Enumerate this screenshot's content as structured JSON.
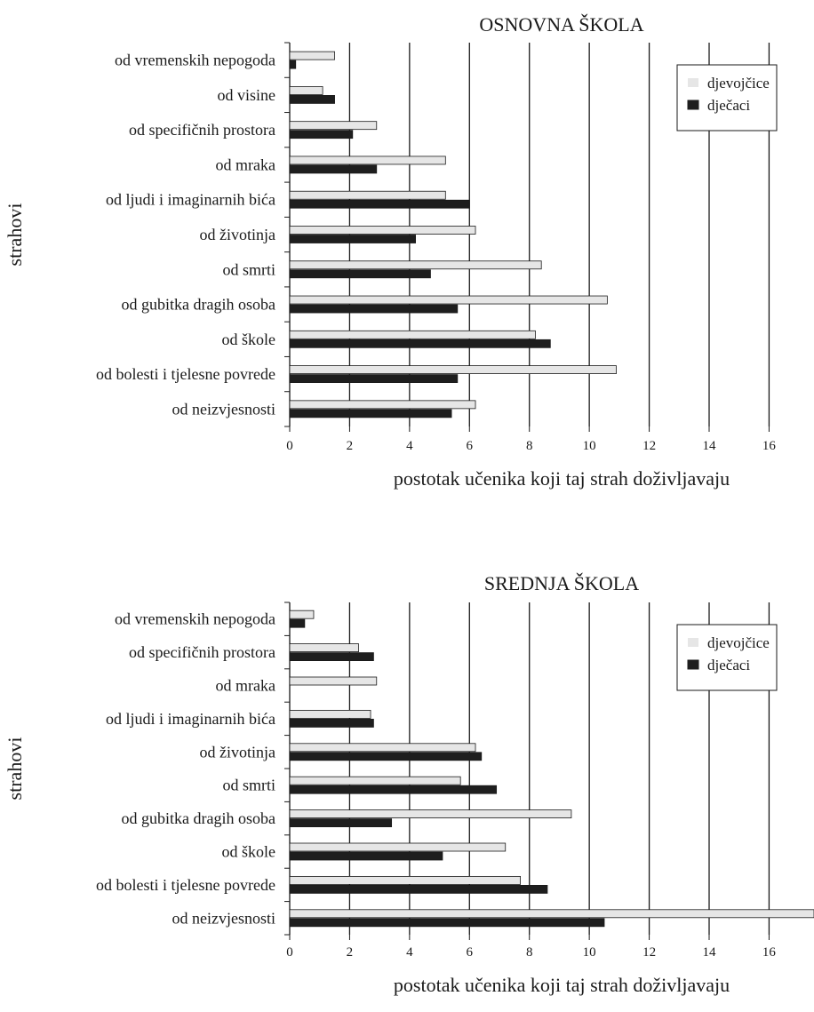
{
  "chart_data": [
    {
      "type": "bar",
      "orientation": "horizontal",
      "title": "OSNOVNA ŠKOLA",
      "xlabel": "postotak učenika koji taj strah doživljavaju",
      "ylabel": "strahovi",
      "xlim": [
        0,
        17.5
      ],
      "xticks": [
        "0",
        "2",
        "4",
        "6",
        "8",
        "10",
        "12",
        "14",
        "16"
      ],
      "grid": "vertical",
      "legend_position": "top-right",
      "categories": [
        "od vremenskih nepogoda",
        "od visine",
        "od specifičnih prostora",
        "od mraka",
        "od ljudi i imaginarnih bića",
        "od životinja",
        "od smrti",
        "od gubitka dragih osoba",
        "od škole",
        "od bolesti i tjelesne povrede",
        "od neizvjesnosti"
      ],
      "series": [
        {
          "name": "djevojčice",
          "color": "#e6e6e6",
          "values": [
            1.5,
            1.1,
            2.9,
            5.2,
            5.2,
            6.2,
            8.4,
            10.6,
            8.2,
            10.9,
            6.2
          ]
        },
        {
          "name": "dječaci",
          "color": "#1e1e1e",
          "values": [
            0.2,
            1.5,
            2.1,
            2.9,
            6.0,
            4.2,
            4.7,
            5.6,
            8.7,
            5.6,
            5.4
          ]
        }
      ]
    },
    {
      "type": "bar",
      "orientation": "horizontal",
      "title": "SREDNJA ŠKOLA",
      "xlabel": "postotak učenika koji taj strah doživljavaju",
      "ylabel": "strahovi",
      "xlim": [
        0,
        17.5
      ],
      "xticks": [
        "0",
        "2",
        "4",
        "6",
        "8",
        "10",
        "12",
        "14",
        "16"
      ],
      "grid": "vertical",
      "legend_position": "top-right",
      "categories": [
        "od vremenskih nepogoda",
        "od specifičnih prostora",
        "od mraka",
        "od ljudi i imaginarnih bića",
        "od životinja",
        "od smrti",
        "od gubitka dragih osoba",
        "od škole",
        "od bolesti i tjelesne povrede",
        "od neizvjesnosti"
      ],
      "series": [
        {
          "name": "djevojčice",
          "color": "#e6e6e6",
          "values": [
            0.8,
            2.3,
            2.9,
            2.7,
            6.2,
            5.7,
            9.4,
            7.2,
            7.7,
            17.5
          ]
        },
        {
          "name": "dječaci",
          "color": "#1e1e1e",
          "values": [
            0.5,
            2.8,
            0,
            2.8,
            6.4,
            6.9,
            3.4,
            5.1,
            8.6,
            10.5
          ]
        }
      ]
    }
  ]
}
